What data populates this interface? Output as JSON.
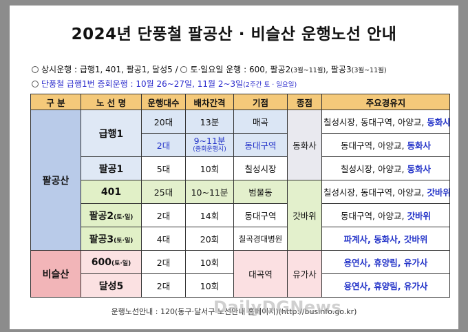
{
  "title": "2024년 단풍철 팔공산 · 비슬산 운행노선 안내",
  "notes": {
    "line1_prefix": "상시운행 : 급행1, 401, 팔공1, 달성5 / ",
    "line1_weekend": "토·일요일 운행 : 600, 팔공2",
    "line1_period1": "(3월~11월)",
    "line1_mid": ", 팔공3",
    "line1_period2": "(3월~11월)",
    "line2": "단풍철 급행1번 증회운행 : 10월 26~27일, 11월 2~3일",
    "line2_suffix": "(2주간 토 · 일요일)"
  },
  "headers": {
    "division": "구 분",
    "route": "노 선 명",
    "buses": "운행대수",
    "interval": "배차간격",
    "origin": "기점",
    "terminal": "종점",
    "stops": "주요경유지"
  },
  "groups": {
    "palgong": "팔공산",
    "biseul": "비슬산"
  },
  "rows": {
    "express1": {
      "name": "급행1",
      "buses_a": "20대",
      "interval_a": "13분",
      "origin_a": "매곡",
      "stops_a_prefix": "칠성시장, 동대구역, 아양교, ",
      "stops_a_hl": "동화사",
      "buses_b": "2대",
      "interval_b": "9~11분",
      "interval_b_note": "(증회운행시)",
      "origin_b": "동대구역",
      "stops_b_prefix": "동대구역, 아양교, ",
      "stops_b_hl": "동화사",
      "terminal": "동화사"
    },
    "palgong1": {
      "name": "팔공1",
      "buses": "5대",
      "interval": "10회",
      "origin": "칠성시장",
      "stops_prefix": "칠성시장, 아양교, ",
      "stops_hl": "동화사"
    },
    "r401": {
      "name": "401",
      "buses": "25대",
      "interval": "10~11분",
      "origin": "범물동",
      "stops_prefix": "칠성시장, 동대구역, 아양교, ",
      "stops_hl": "갓바위"
    },
    "palgong2": {
      "name": "팔공2",
      "name_note": "(토·일)",
      "buses": "2대",
      "interval": "14회",
      "origin": "동대구역",
      "stops_prefix": "동대구역, 아양교, ",
      "stops_hl": "갓바위"
    },
    "palgong3": {
      "name": "팔공3",
      "name_note": "(토·일)",
      "buses": "4대",
      "interval": "20회",
      "origin": "칠곡경대병원",
      "stops": "파계사, 동화사, 갓바위"
    },
    "gat_terminal": "갓바위",
    "r600": {
      "name": "600",
      "name_note": "(토·일)",
      "buses": "2대",
      "interval": "10회",
      "stops": "용연사, 휴양림, 유가사"
    },
    "dalseong5": {
      "name": "달성5",
      "buses": "2대",
      "interval": "10회",
      "stops": "용연사, 휴양림, 유가사"
    },
    "bis_origin": "대곡역",
    "bis_terminal": "유가사"
  },
  "footer": "운행노선안내 : 120(동구·달서구 노선안내 홈페이지)(http://businfo.go.kr)",
  "watermark": "DailyDGNews"
}
